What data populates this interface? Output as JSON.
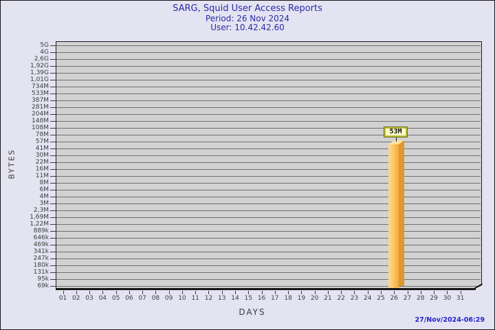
{
  "header": {
    "title": "SARG, Squid User Access Reports",
    "period": "Period: 26 Nov 2024",
    "user": "User: 10.42.42.60"
  },
  "footer": {
    "timestamp": "27/Nov/2024-06:29"
  },
  "colors": {
    "background": "#E3E3F2",
    "title_text": "#2B2BA4",
    "plot_background": "#D2D2D2",
    "gridline": "#6F6F6F",
    "bar_front": "#FDC868",
    "bar_side": "#DD9831",
    "bar_top": "#FFDFA0",
    "value_box_bg": "#FFFFC9",
    "value_box_border": "#BDBD3D",
    "timestamp_text": "#2424CE"
  },
  "chart_data": {
    "type": "bar",
    "title": "SARG, Squid User Access Reports",
    "subtitle": [
      "Period: 26 Nov 2024",
      "User: 10.42.42.60"
    ],
    "xlabel": "DAYS",
    "ylabel": "BYTES",
    "categories": [
      "01",
      "02",
      "03",
      "04",
      "05",
      "06",
      "07",
      "08",
      "09",
      "10",
      "11",
      "12",
      "13",
      "14",
      "15",
      "16",
      "17",
      "18",
      "19",
      "20",
      "21",
      "22",
      "23",
      "24",
      "25",
      "26",
      "27",
      "28",
      "29",
      "30",
      "31"
    ],
    "values": [
      0,
      0,
      0,
      0,
      0,
      0,
      0,
      0,
      0,
      0,
      0,
      0,
      0,
      0,
      0,
      0,
      0,
      0,
      0,
      0,
      0,
      0,
      0,
      0,
      0,
      53000000,
      0,
      0,
      0,
      0,
      0
    ],
    "annotations": [
      {
        "x": "26",
        "text": "53M"
      }
    ],
    "y_scale": "logarithmic",
    "y_tick_labels": [
      "5G",
      "4G",
      "2,6G",
      "1,92G",
      "1,39G",
      "1,01G",
      "734M",
      "533M",
      "387M",
      "281M",
      "204M",
      "148M",
      "108M",
      "78M",
      "57M",
      "41M",
      "30M",
      "22M",
      "16M",
      "11M",
      "8M",
      "6M",
      "4M",
      "3M",
      "2,3M",
      "1,69M",
      "1,22M",
      "889k",
      "646k",
      "469k",
      "341k",
      "247k",
      "180k",
      "131k",
      "95k",
      "69k"
    ],
    "grid": true,
    "legend": false
  }
}
